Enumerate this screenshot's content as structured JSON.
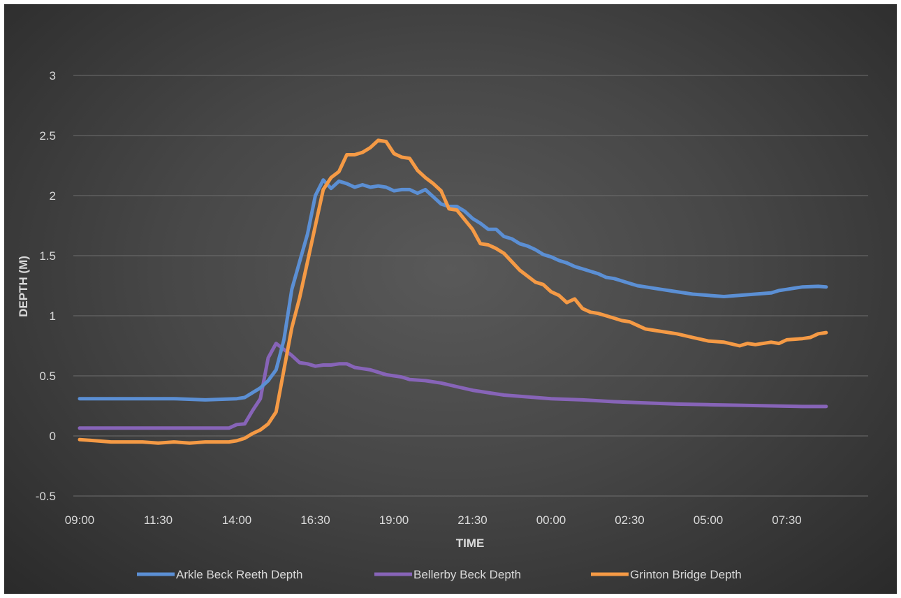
{
  "chart_data": {
    "type": "line",
    "title": "",
    "xlabel": "TIME",
    "ylabel": "DEPTH (M)",
    "ylim": [
      -0.5,
      3
    ],
    "yticks": [
      "-0.5",
      "0",
      "0.5",
      "1",
      "1.5",
      "2",
      "2.5",
      "3"
    ],
    "xticks": [
      "09:00",
      "11:30",
      "14:00",
      "16:30",
      "19:00",
      "21:30",
      "00:00",
      "02:30",
      "05:00",
      "07:30"
    ],
    "x_unit": "clock time (09:00 on day 1 to ~08:45 on day 2)",
    "grid": true,
    "legend_position": "bottom",
    "series": [
      {
        "name": "Arkle Beck Reeth  Depth",
        "color": "#5b8fd4",
        "points": [
          [
            "09:00",
            0.31
          ],
          [
            "10:00",
            0.31
          ],
          [
            "11:00",
            0.31
          ],
          [
            "12:00",
            0.31
          ],
          [
            "13:00",
            0.3
          ],
          [
            "14:00",
            0.31
          ],
          [
            "14:15",
            0.32
          ],
          [
            "14:30",
            0.36
          ],
          [
            "14:45",
            0.4
          ],
          [
            "15:00",
            0.46
          ],
          [
            "15:15",
            0.55
          ],
          [
            "15:30",
            0.8
          ],
          [
            "15:45",
            1.22
          ],
          [
            "16:00",
            1.45
          ],
          [
            "16:15",
            1.68
          ],
          [
            "16:30",
            2.0
          ],
          [
            "16:45",
            2.13
          ],
          [
            "17:00",
            2.06
          ],
          [
            "17:15",
            2.12
          ],
          [
            "17:30",
            2.1
          ],
          [
            "17:45",
            2.07
          ],
          [
            "18:00",
            2.09
          ],
          [
            "18:15",
            2.07
          ],
          [
            "18:30",
            2.08
          ],
          [
            "18:45",
            2.07
          ],
          [
            "19:00",
            2.04
          ],
          [
            "19:15",
            2.05
          ],
          [
            "19:30",
            2.05
          ],
          [
            "19:45",
            2.02
          ],
          [
            "20:00",
            2.05
          ],
          [
            "20:15",
            1.99
          ],
          [
            "20:30",
            1.93
          ],
          [
            "20:45",
            1.91
          ],
          [
            "21:00",
            1.91
          ],
          [
            "21:15",
            1.87
          ],
          [
            "21:30",
            1.81
          ],
          [
            "21:45",
            1.77
          ],
          [
            "22:00",
            1.72
          ],
          [
            "22:15",
            1.72
          ],
          [
            "22:30",
            1.66
          ],
          [
            "22:45",
            1.64
          ],
          [
            "23:00",
            1.6
          ],
          [
            "23:15",
            1.58
          ],
          [
            "23:30",
            1.55
          ],
          [
            "23:45",
            1.51
          ],
          [
            "00:00",
            1.49
          ],
          [
            "00:15",
            1.46
          ],
          [
            "00:30",
            1.44
          ],
          [
            "00:45",
            1.41
          ],
          [
            "01:00",
            1.39
          ],
          [
            "01:15",
            1.37
          ],
          [
            "01:30",
            1.35
          ],
          [
            "01:45",
            1.32
          ],
          [
            "02:00",
            1.31
          ],
          [
            "02:15",
            1.29
          ],
          [
            "02:30",
            1.27
          ],
          [
            "02:45",
            1.25
          ],
          [
            "03:00",
            1.24
          ],
          [
            "03:30",
            1.22
          ],
          [
            "04:00",
            1.2
          ],
          [
            "04:30",
            1.18
          ],
          [
            "05:00",
            1.17
          ],
          [
            "05:30",
            1.16
          ],
          [
            "06:00",
            1.17
          ],
          [
            "06:30",
            1.18
          ],
          [
            "07:00",
            1.19
          ],
          [
            "07:15",
            1.21
          ],
          [
            "07:30",
            1.22
          ],
          [
            "07:45",
            1.23
          ],
          [
            "08:00",
            1.24
          ],
          [
            "08:30",
            1.245
          ],
          [
            "08:45",
            1.24
          ]
        ]
      },
      {
        "name": "Bellerby Beck Depth",
        "color": "#8764b8",
        "points": [
          [
            "09:00",
            0.065
          ],
          [
            "10:00",
            0.065
          ],
          [
            "11:00",
            0.065
          ],
          [
            "12:00",
            0.065
          ],
          [
            "13:00",
            0.065
          ],
          [
            "13:45",
            0.065
          ],
          [
            "14:00",
            0.095
          ],
          [
            "14:15",
            0.1
          ],
          [
            "14:30",
            0.21
          ],
          [
            "14:45",
            0.31
          ],
          [
            "15:00",
            0.65
          ],
          [
            "15:15",
            0.77
          ],
          [
            "15:30",
            0.72
          ],
          [
            "15:45",
            0.67
          ],
          [
            "16:00",
            0.61
          ],
          [
            "16:15",
            0.6
          ],
          [
            "16:30",
            0.58
          ],
          [
            "16:45",
            0.59
          ],
          [
            "17:00",
            0.59
          ],
          [
            "17:15",
            0.6
          ],
          [
            "17:30",
            0.6
          ],
          [
            "17:45",
            0.57
          ],
          [
            "18:00",
            0.56
          ],
          [
            "18:15",
            0.55
          ],
          [
            "18:30",
            0.53
          ],
          [
            "18:45",
            0.51
          ],
          [
            "19:00",
            0.5
          ],
          [
            "19:15",
            0.49
          ],
          [
            "19:30",
            0.47
          ],
          [
            "20:00",
            0.46
          ],
          [
            "20:30",
            0.44
          ],
          [
            "21:00",
            0.41
          ],
          [
            "21:30",
            0.38
          ],
          [
            "22:00",
            0.36
          ],
          [
            "22:30",
            0.34
          ],
          [
            "23:00",
            0.33
          ],
          [
            "23:30",
            0.32
          ],
          [
            "00:00",
            0.31
          ],
          [
            "01:00",
            0.3
          ],
          [
            "02:00",
            0.285
          ],
          [
            "03:00",
            0.275
          ],
          [
            "04:00",
            0.265
          ],
          [
            "05:00",
            0.26
          ],
          [
            "06:00",
            0.255
          ],
          [
            "07:00",
            0.25
          ],
          [
            "08:00",
            0.245
          ],
          [
            "08:45",
            0.245
          ]
        ]
      },
      {
        "name": "Grinton Bridge Depth",
        "color": "#f59a45",
        "points": [
          [
            "09:00",
            -0.03
          ],
          [
            "09:30",
            -0.04
          ],
          [
            "10:00",
            -0.05
          ],
          [
            "10:30",
            -0.05
          ],
          [
            "11:00",
            -0.05
          ],
          [
            "11:30",
            -0.06
          ],
          [
            "12:00",
            -0.05
          ],
          [
            "12:30",
            -0.06
          ],
          [
            "13:00",
            -0.05
          ],
          [
            "13:30",
            -0.05
          ],
          [
            "13:45",
            -0.05
          ],
          [
            "14:00",
            -0.04
          ],
          [
            "14:15",
            -0.02
          ],
          [
            "14:30",
            0.02
          ],
          [
            "14:45",
            0.05
          ],
          [
            "15:00",
            0.1
          ],
          [
            "15:15",
            0.2
          ],
          [
            "15:30",
            0.55
          ],
          [
            "15:45",
            0.9
          ],
          [
            "16:00",
            1.15
          ],
          [
            "16:15",
            1.45
          ],
          [
            "16:30",
            1.75
          ],
          [
            "16:45",
            2.05
          ],
          [
            "17:00",
            2.15
          ],
          [
            "17:15",
            2.2
          ],
          [
            "17:30",
            2.34
          ],
          [
            "17:45",
            2.34
          ],
          [
            "18:00",
            2.36
          ],
          [
            "18:15",
            2.4
          ],
          [
            "18:30",
            2.46
          ],
          [
            "18:45",
            2.45
          ],
          [
            "19:00",
            2.35
          ],
          [
            "19:15",
            2.32
          ],
          [
            "19:30",
            2.31
          ],
          [
            "19:45",
            2.21
          ],
          [
            "20:00",
            2.15
          ],
          [
            "20:15",
            2.1
          ],
          [
            "20:30",
            2.04
          ],
          [
            "20:45",
            1.89
          ],
          [
            "21:00",
            1.88
          ],
          [
            "21:15",
            1.8
          ],
          [
            "21:30",
            1.72
          ],
          [
            "21:45",
            1.6
          ],
          [
            "22:00",
            1.59
          ],
          [
            "22:15",
            1.56
          ],
          [
            "22:30",
            1.52
          ],
          [
            "22:45",
            1.45
          ],
          [
            "23:00",
            1.38
          ],
          [
            "23:15",
            1.33
          ],
          [
            "23:30",
            1.28
          ],
          [
            "23:45",
            1.26
          ],
          [
            "00:00",
            1.2
          ],
          [
            "00:15",
            1.17
          ],
          [
            "00:30",
            1.11
          ],
          [
            "00:45",
            1.14
          ],
          [
            "01:00",
            1.06
          ],
          [
            "01:15",
            1.03
          ],
          [
            "01:30",
            1.02
          ],
          [
            "01:45",
            1.0
          ],
          [
            "02:00",
            0.98
          ],
          [
            "02:15",
            0.96
          ],
          [
            "02:30",
            0.95
          ],
          [
            "02:45",
            0.92
          ],
          [
            "03:00",
            0.89
          ],
          [
            "03:30",
            0.87
          ],
          [
            "04:00",
            0.85
          ],
          [
            "04:30",
            0.82
          ],
          [
            "05:00",
            0.79
          ],
          [
            "05:30",
            0.78
          ],
          [
            "06:00",
            0.75
          ],
          [
            "06:15",
            0.77
          ],
          [
            "06:30",
            0.76
          ],
          [
            "07:00",
            0.78
          ],
          [
            "07:15",
            0.77
          ],
          [
            "07:30",
            0.8
          ],
          [
            "08:00",
            0.81
          ],
          [
            "08:15",
            0.82
          ],
          [
            "08:30",
            0.85
          ],
          [
            "08:45",
            0.86
          ]
        ]
      }
    ]
  }
}
